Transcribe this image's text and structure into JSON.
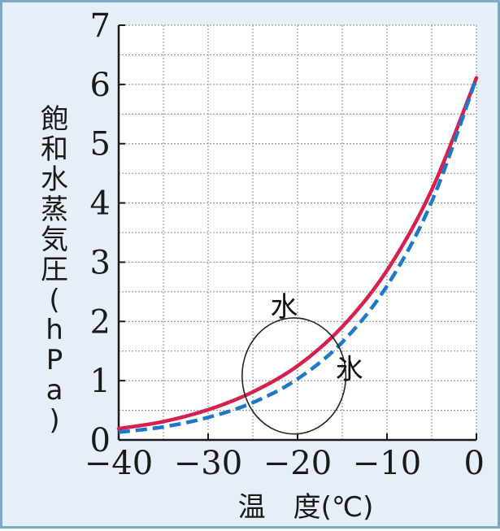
{
  "chart_data": {
    "type": "line",
    "xlabel": "温　度(℃)",
    "ylabel": "飽和水蒸気圧(hPa)",
    "xlim": [
      -40,
      0
    ],
    "ylim": [
      0,
      7
    ],
    "x_ticks": [
      -40,
      -30,
      -20,
      -10,
      0
    ],
    "x_tick_labels": [
      "−40",
      "−30",
      "−20",
      "−10",
      "0"
    ],
    "y_ticks": [
      0,
      1,
      2,
      3,
      4,
      5,
      6,
      7
    ],
    "y_tick_labels": [
      "0",
      "1",
      "2",
      "3",
      "4",
      "5",
      "6",
      "7"
    ],
    "grid": true,
    "series": [
      {
        "name": "水",
        "color": "#d6214f",
        "line_style": "solid",
        "x": [
          -40,
          -35,
          -30,
          -25,
          -20,
          -15,
          -10,
          -5,
          0
        ],
        "y": [
          0.19,
          0.31,
          0.51,
          0.81,
          1.25,
          1.91,
          2.86,
          4.22,
          6.11
        ]
      },
      {
        "name": "氷",
        "color": "#1e78c8",
        "line_style": "dashed",
        "x": [
          -40,
          -35,
          -30,
          -25,
          -20,
          -15,
          -10,
          -5,
          0
        ],
        "y": [
          0.13,
          0.22,
          0.38,
          0.63,
          1.03,
          1.65,
          2.6,
          4.02,
          6.11
        ]
      }
    ],
    "annotations": [
      {
        "text": "水",
        "x": -21.5,
        "y": 2.25
      },
      {
        "text": "氷",
        "x": -14.2,
        "y": 1.2
      }
    ],
    "highlight_circle": {
      "cx": -20.4,
      "cy": 1.08,
      "rx": 5.8,
      "ry": 0.98
    }
  }
}
